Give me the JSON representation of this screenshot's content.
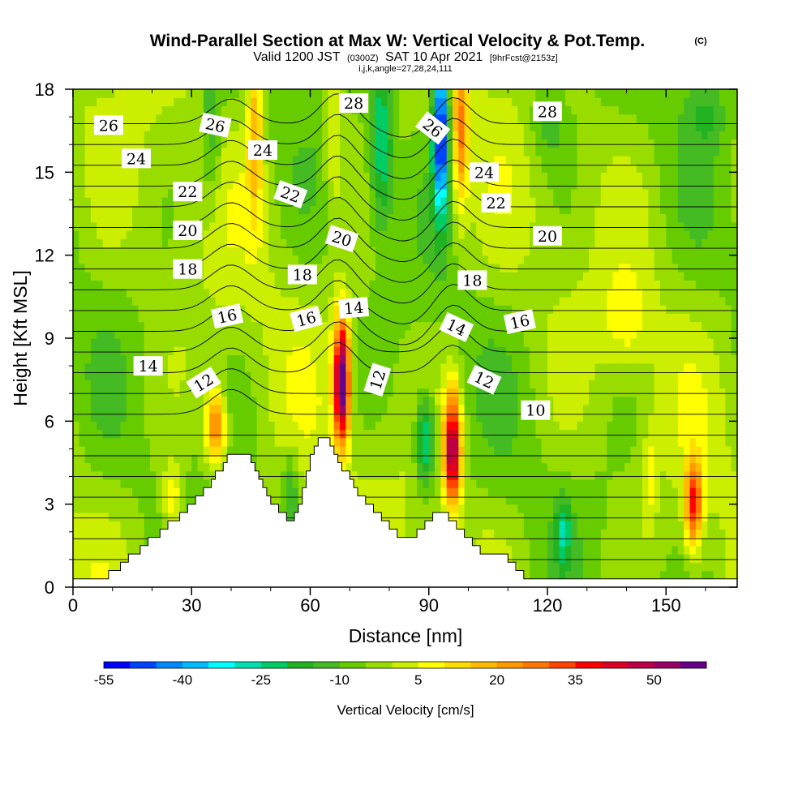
{
  "title": {
    "main": "Wind-Parallel Section at Max W: Vertical Velocity & Pot.Temp.",
    "copyright": "(C)",
    "valid_prefix": "Valid 1200 JST",
    "valid_utc": "(0300Z)",
    "valid_date": "SAT 10 Apr 2021",
    "forecast": "[9hrFcst@2153z]",
    "grid": "i,j,k,angle=27,28,24,111"
  },
  "chart_data": {
    "type": "heatmap",
    "xlabel": "Distance [nm]",
    "ylabel": "Height [Kft MSL]",
    "xlim": [
      0,
      168
    ],
    "ylim": [
      0,
      18
    ],
    "x_ticks": [
      0,
      30,
      60,
      90,
      120,
      150
    ],
    "y_ticks": [
      0,
      3,
      6,
      9,
      12,
      15,
      18
    ],
    "colorbar": {
      "label": "Vertical Velocity [cm/s]",
      "min": -55,
      "max": 60,
      "step": 5,
      "tick_values": [
        -55,
        -40,
        -25,
        -10,
        5,
        20,
        35,
        50
      ],
      "colors": [
        "#0000ff",
        "#0044ff",
        "#0088ff",
        "#00bbff",
        "#00ffff",
        "#00e0b0",
        "#00cc66",
        "#22b322",
        "#44bb22",
        "#66cc00",
        "#99dd00",
        "#ccee00",
        "#ffff00",
        "#ffdd00",
        "#ffbb00",
        "#ff9900",
        "#ff7700",
        "#ff4400",
        "#ff0000",
        "#dd0022",
        "#bb0044",
        "#990066",
        "#660088"
      ]
    },
    "terrain_nm_kft": [
      [
        0,
        0.3
      ],
      [
        9,
        0.3
      ],
      [
        9,
        0.6
      ],
      [
        12,
        0.6
      ],
      [
        12,
        0.9
      ],
      [
        14,
        0.9
      ],
      [
        14,
        1.2
      ],
      [
        17,
        1.2
      ],
      [
        17,
        1.5
      ],
      [
        19,
        1.5
      ],
      [
        19,
        1.8
      ],
      [
        22,
        1.8
      ],
      [
        22,
        2.1
      ],
      [
        24,
        2.1
      ],
      [
        24,
        2.4
      ],
      [
        27,
        2.4
      ],
      [
        27,
        2.7
      ],
      [
        29,
        2.7
      ],
      [
        29,
        3.0
      ],
      [
        31,
        3.0
      ],
      [
        31,
        3.3
      ],
      [
        33,
        3.3
      ],
      [
        33,
        3.6
      ],
      [
        35,
        3.6
      ],
      [
        35,
        3.9
      ],
      [
        36,
        3.9
      ],
      [
        36,
        4.2
      ],
      [
        38,
        4.2
      ],
      [
        38,
        4.5
      ],
      [
        39,
        4.5
      ],
      [
        39,
        4.8
      ],
      [
        45,
        4.8
      ],
      [
        45,
        4.5
      ],
      [
        46,
        4.5
      ],
      [
        46,
        4.2
      ],
      [
        47,
        4.2
      ],
      [
        47,
        3.9
      ],
      [
        48,
        3.9
      ],
      [
        48,
        3.6
      ],
      [
        49,
        3.6
      ],
      [
        49,
        3.3
      ],
      [
        50,
        3.3
      ],
      [
        50,
        3.0
      ],
      [
        52,
        3.0
      ],
      [
        52,
        2.7
      ],
      [
        54,
        2.7
      ],
      [
        54,
        2.4
      ],
      [
        56,
        2.4
      ],
      [
        56,
        2.7
      ],
      [
        57,
        2.7
      ],
      [
        57,
        3.0
      ],
      [
        58,
        3.0
      ],
      [
        58,
        3.6
      ],
      [
        59,
        3.6
      ],
      [
        59,
        4.2
      ],
      [
        60,
        4.2
      ],
      [
        60,
        4.8
      ],
      [
        61,
        4.8
      ],
      [
        61,
        5.1
      ],
      [
        62,
        5.1
      ],
      [
        62,
        5.4
      ],
      [
        65,
        5.4
      ],
      [
        65,
        5.1
      ],
      [
        66,
        5.1
      ],
      [
        66,
        4.8
      ],
      [
        67,
        4.8
      ],
      [
        67,
        4.5
      ],
      [
        68,
        4.5
      ],
      [
        68,
        4.2
      ],
      [
        70,
        4.2
      ],
      [
        70,
        3.9
      ],
      [
        71,
        3.9
      ],
      [
        71,
        3.6
      ],
      [
        72,
        3.6
      ],
      [
        72,
        3.3
      ],
      [
        74,
        3.3
      ],
      [
        74,
        3.0
      ],
      [
        76,
        3.0
      ],
      [
        76,
        2.7
      ],
      [
        78,
        2.7
      ],
      [
        78,
        2.4
      ],
      [
        80,
        2.4
      ],
      [
        80,
        2.1
      ],
      [
        82,
        2.1
      ],
      [
        82,
        1.8
      ],
      [
        87,
        1.8
      ],
      [
        87,
        2.1
      ],
      [
        89,
        2.1
      ],
      [
        89,
        2.4
      ],
      [
        91,
        2.4
      ],
      [
        91,
        2.7
      ],
      [
        95,
        2.7
      ],
      [
        95,
        2.4
      ],
      [
        97,
        2.4
      ],
      [
        97,
        2.1
      ],
      [
        99,
        2.1
      ],
      [
        99,
        1.8
      ],
      [
        101,
        1.8
      ],
      [
        101,
        1.5
      ],
      [
        103,
        1.5
      ],
      [
        103,
        1.2
      ],
      [
        110,
        1.2
      ],
      [
        110,
        0.9
      ],
      [
        112,
        0.9
      ],
      [
        112,
        0.6
      ],
      [
        114,
        0.6
      ],
      [
        114,
        0.3
      ],
      [
        168,
        0.3
      ]
    ],
    "theta_contour_labels": [
      {
        "text": "26",
        "x": 9,
        "y": 16.7,
        "angle": 0
      },
      {
        "text": "24",
        "x": 16,
        "y": 15.5,
        "angle": 0
      },
      {
        "text": "22",
        "x": 29,
        "y": 14.3,
        "angle": 0
      },
      {
        "text": "20",
        "x": 29,
        "y": 12.9,
        "angle": 0
      },
      {
        "text": "18",
        "x": 29,
        "y": 11.5,
        "angle": 0
      },
      {
        "text": "16",
        "x": 39,
        "y": 9.8,
        "angle": -12
      },
      {
        "text": "14",
        "x": 19,
        "y": 8.0,
        "angle": 0
      },
      {
        "text": "12",
        "x": 33,
        "y": 7.4,
        "angle": -32
      },
      {
        "text": "26",
        "x": 36,
        "y": 16.7,
        "angle": 12
      },
      {
        "text": "24",
        "x": 48,
        "y": 15.8,
        "angle": 0
      },
      {
        "text": "22",
        "x": 55,
        "y": 14.2,
        "angle": 20
      },
      {
        "text": "18",
        "x": 58,
        "y": 11.3,
        "angle": 0
      },
      {
        "text": "16",
        "x": 59,
        "y": 9.7,
        "angle": -15
      },
      {
        "text": "20",
        "x": 68,
        "y": 12.6,
        "angle": 18
      },
      {
        "text": "14",
        "x": 71,
        "y": 10.1,
        "angle": -5
      },
      {
        "text": "12",
        "x": 77,
        "y": 7.5,
        "angle": -72
      },
      {
        "text": "28",
        "x": 71,
        "y": 17.5,
        "angle": 0
      },
      {
        "text": "26",
        "x": 91,
        "y": 16.6,
        "angle": 38
      },
      {
        "text": "24",
        "x": 104,
        "y": 15.0,
        "angle": 0
      },
      {
        "text": "22",
        "x": 107,
        "y": 13.9,
        "angle": 0
      },
      {
        "text": "18",
        "x": 101,
        "y": 11.1,
        "angle": 0
      },
      {
        "text": "14",
        "x": 97,
        "y": 9.4,
        "angle": 25
      },
      {
        "text": "12",
        "x": 104,
        "y": 7.5,
        "angle": 25
      },
      {
        "text": "16",
        "x": 113,
        "y": 9.6,
        "angle": -12
      },
      {
        "text": "10",
        "x": 117,
        "y": 6.4,
        "angle": 0
      },
      {
        "text": "20",
        "x": 120,
        "y": 12.7,
        "angle": 0
      },
      {
        "text": "28",
        "x": 120,
        "y": 17.2,
        "angle": 0
      }
    ]
  }
}
